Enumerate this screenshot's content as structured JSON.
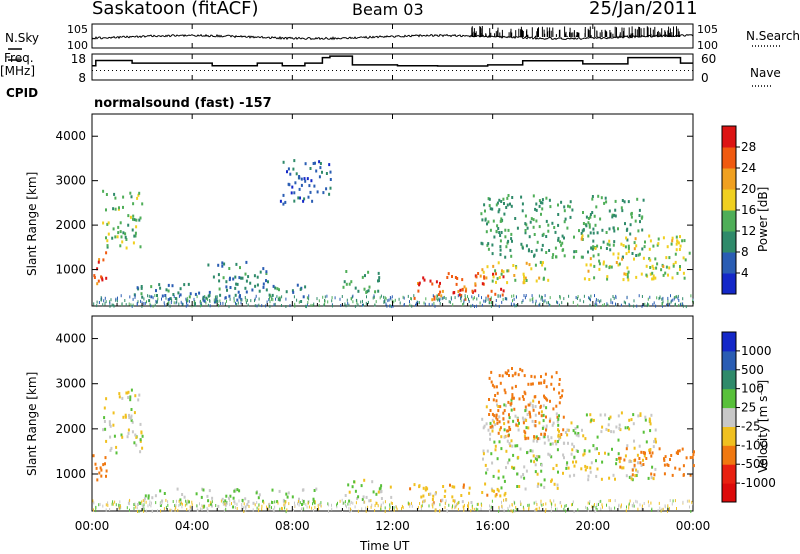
{
  "header": {
    "station": "Saskatoon (fitACF)",
    "beam": "Beam 03",
    "date": "25/Jan/2011"
  },
  "left_labels": {
    "nsky": "N.Sky",
    "freq_line1": "Freq.",
    "freq_line2": "[MHz]",
    "cpid": "CPID"
  },
  "right_labels": {
    "nsearch": "N.Search",
    "nave": "Nave"
  },
  "cpid_text": "normalsound (fast) -157",
  "ticks": {
    "noise_left": [
      "10^5",
      "10^0"
    ],
    "noise_right": [
      "10^5",
      "10^0"
    ],
    "freq_left": [
      "18",
      "8"
    ],
    "freq_right": [
      "60",
      "0"
    ],
    "range": [
      "1000",
      "2000",
      "3000",
      "4000"
    ],
    "time": [
      "00:00",
      "04:00",
      "08:00",
      "12:00",
      "16:00",
      "20:00",
      "00:00"
    ]
  },
  "axis_labels": {
    "range": "Slant Range [km]",
    "time": "Time UT",
    "power": "Power [dB]",
    "velocity": "Velocity [m s⁻¹]"
  },
  "colorbars": {
    "power": {
      "labels": [
        "4",
        "8",
        "12",
        "16",
        "20",
        "24",
        "28"
      ],
      "colors": [
        "#1428c8",
        "#2a5db3",
        "#2f8a6a",
        "#4fae58",
        "#f0d020",
        "#f0a020",
        "#f05a10",
        "#dc1414"
      ]
    },
    "velocity": {
      "labels": [
        "1000",
        "500",
        "100",
        "25",
        "-25",
        "-100",
        "-500",
        "-1000"
      ],
      "colors": [
        "#1428c8",
        "#2a5db3",
        "#2f8a6a",
        "#58c03a",
        "#c8c8c8",
        "#f0c020",
        "#f07810",
        "#e82010",
        "#dc0a0a"
      ]
    }
  },
  "chart_data": [
    {
      "type": "line",
      "name": "noise",
      "x_range_hours": [
        0,
        24
      ],
      "ylim_log10": [
        0,
        5
      ],
      "series": [
        {
          "label": "N.Sky",
          "style": "solid"
        },
        {
          "label": "N.Search",
          "style": "dotted"
        }
      ]
    },
    {
      "type": "line",
      "name": "frequency and nave",
      "ylim_left_MHz": [
        8,
        18
      ],
      "ylim_right": [
        0,
        60
      ],
      "series": [
        {
          "label": "Freq.",
          "style": "solid",
          "steps": [
            [
              0,
              13.5
            ],
            [
              0.15,
              15.5
            ],
            [
              1.6,
              14.5
            ],
            [
              4.8,
              13.5
            ],
            [
              6.6,
              14.5
            ],
            [
              7.6,
              13.5
            ],
            [
              8.5,
              14.5
            ],
            [
              9.2,
              16.6
            ],
            [
              9.5,
              17.2
            ],
            [
              10.4,
              13.8
            ],
            [
              12.2,
              13.5
            ],
            [
              13.8,
              13.4
            ],
            [
              15.8,
              13.8
            ],
            [
              17.2,
              15.4
            ],
            [
              19.6,
              14.2
            ],
            [
              21.4,
              16.6
            ],
            [
              23.5,
              14.5
            ],
            [
              24,
              14.5
            ]
          ]
        },
        {
          "label": "Nave",
          "style": "dotted",
          "value": 22
        }
      ]
    },
    {
      "type": "heatmap",
      "name": "power",
      "x_range_hours": [
        0,
        24
      ],
      "ylim_km": [
        180,
        4500
      ],
      "zlim_dB": [
        0,
        32
      ],
      "regions": [
        {
          "t": [
            0.0,
            0.6
          ],
          "r": [
            700,
            1500
          ],
          "v": 26
        },
        {
          "t": [
            0.4,
            2.0
          ],
          "r": [
            1500,
            2800
          ],
          "v": 14
        },
        {
          "t": [
            1.6,
            9.0
          ],
          "r": [
            300,
            700
          ],
          "v": 9
        },
        {
          "t": [
            4.5,
            7.0
          ],
          "r": [
            700,
            1200
          ],
          "v": 10
        },
        {
          "t": [
            7.5,
            9.5
          ],
          "r": [
            2500,
            3500
          ],
          "v": 6
        },
        {
          "t": [
            10.0,
            11.6
          ],
          "r": [
            500,
            1000
          ],
          "v": 12
        },
        {
          "t": [
            12.8,
            16.5
          ],
          "r": [
            350,
            950
          ],
          "v": 27
        },
        {
          "t": [
            15.5,
            18.6
          ],
          "r": [
            700,
            1200
          ],
          "v": 18
        },
        {
          "t": [
            15.5,
            22.0
          ],
          "r": [
            1300,
            2700
          ],
          "v": 12
        },
        {
          "t": [
            19.5,
            24.0
          ],
          "r": [
            800,
            1800
          ],
          "v": 17
        }
      ]
    },
    {
      "type": "heatmap",
      "name": "velocity",
      "x_range_hours": [
        0,
        24
      ],
      "ylim_km": [
        180,
        4500
      ],
      "zlim_m_s": [
        -1000,
        1000
      ],
      "regions": [
        {
          "t": [
            0.0,
            0.6
          ],
          "r": [
            700,
            1500
          ],
          "v": -300
        },
        {
          "t": [
            0.4,
            2.0
          ],
          "r": [
            1500,
            2900
          ],
          "v": 0
        },
        {
          "t": [
            1.6,
            9.0
          ],
          "r": [
            300,
            700
          ],
          "v": 40
        },
        {
          "t": [
            10.0,
            12.0
          ],
          "r": [
            400,
            900
          ],
          "v": 0
        },
        {
          "t": [
            12.5,
            16.5
          ],
          "r": [
            350,
            800
          ],
          "v": -60
        },
        {
          "t": [
            15.5,
            18.6
          ],
          "r": [
            700,
            2700
          ],
          "v": 0
        },
        {
          "t": [
            15.8,
            18.8
          ],
          "r": [
            1800,
            3400
          ],
          "v": -200
        },
        {
          "t": [
            18.5,
            22.5
          ],
          "r": [
            900,
            2400
          ],
          "v": 0
        },
        {
          "t": [
            21.0,
            24.0
          ],
          "r": [
            1000,
            1600
          ],
          "v": -300
        }
      ]
    }
  ]
}
